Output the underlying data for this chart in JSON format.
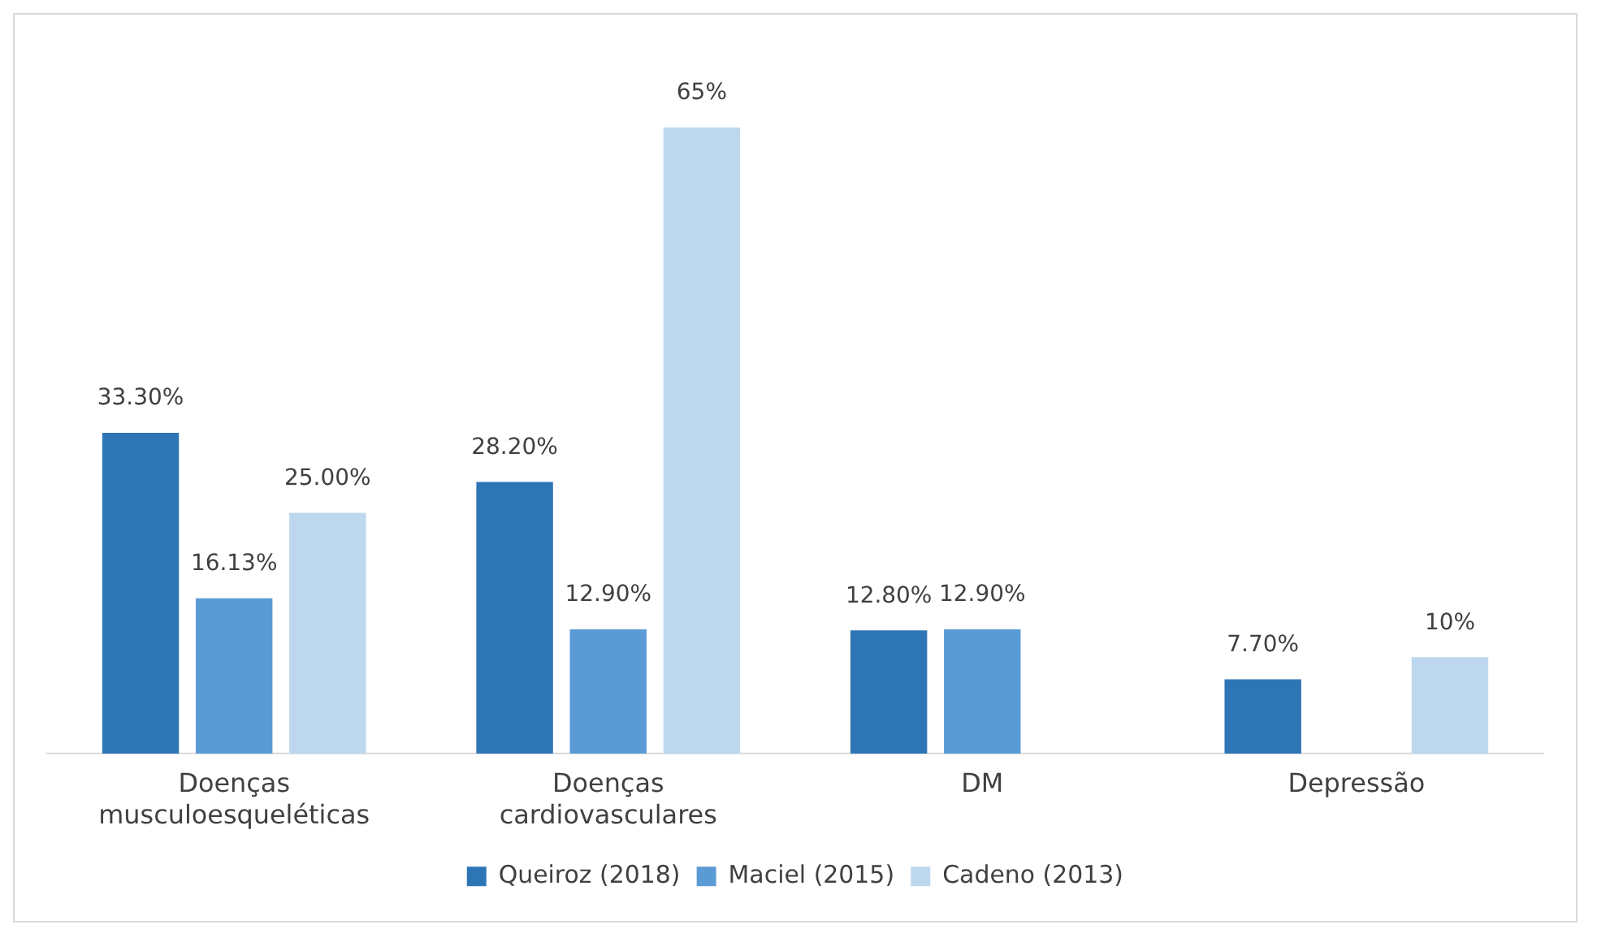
{
  "chart_data": {
    "type": "bar",
    "categories": [
      "Doenças musculoesqueléticas",
      "Doenças cardiovasculares",
      "DM",
      "Depressão"
    ],
    "series": [
      {
        "name": "Queiroz (2018)",
        "color": "#2e75b6",
        "values": [
          33.3,
          28.2,
          12.8,
          7.7
        ],
        "value_labels": [
          "33.30%",
          "28.20%",
          "12.80%",
          "7.70%"
        ]
      },
      {
        "name": "Maciel (2015)",
        "color": "#5b9bd5",
        "values": [
          16.13,
          12.9,
          12.9,
          null
        ],
        "value_labels": [
          "16.13%",
          "12.90%",
          "12.90%",
          null
        ]
      },
      {
        "name": "Cadeno (2013)",
        "color": "#bdd7ee",
        "values": [
          25,
          65,
          null,
          10
        ],
        "value_labels": [
          "25.00%",
          "65%",
          null,
          "10%"
        ]
      }
    ],
    "grid": false,
    "legend": "bottom"
  }
}
